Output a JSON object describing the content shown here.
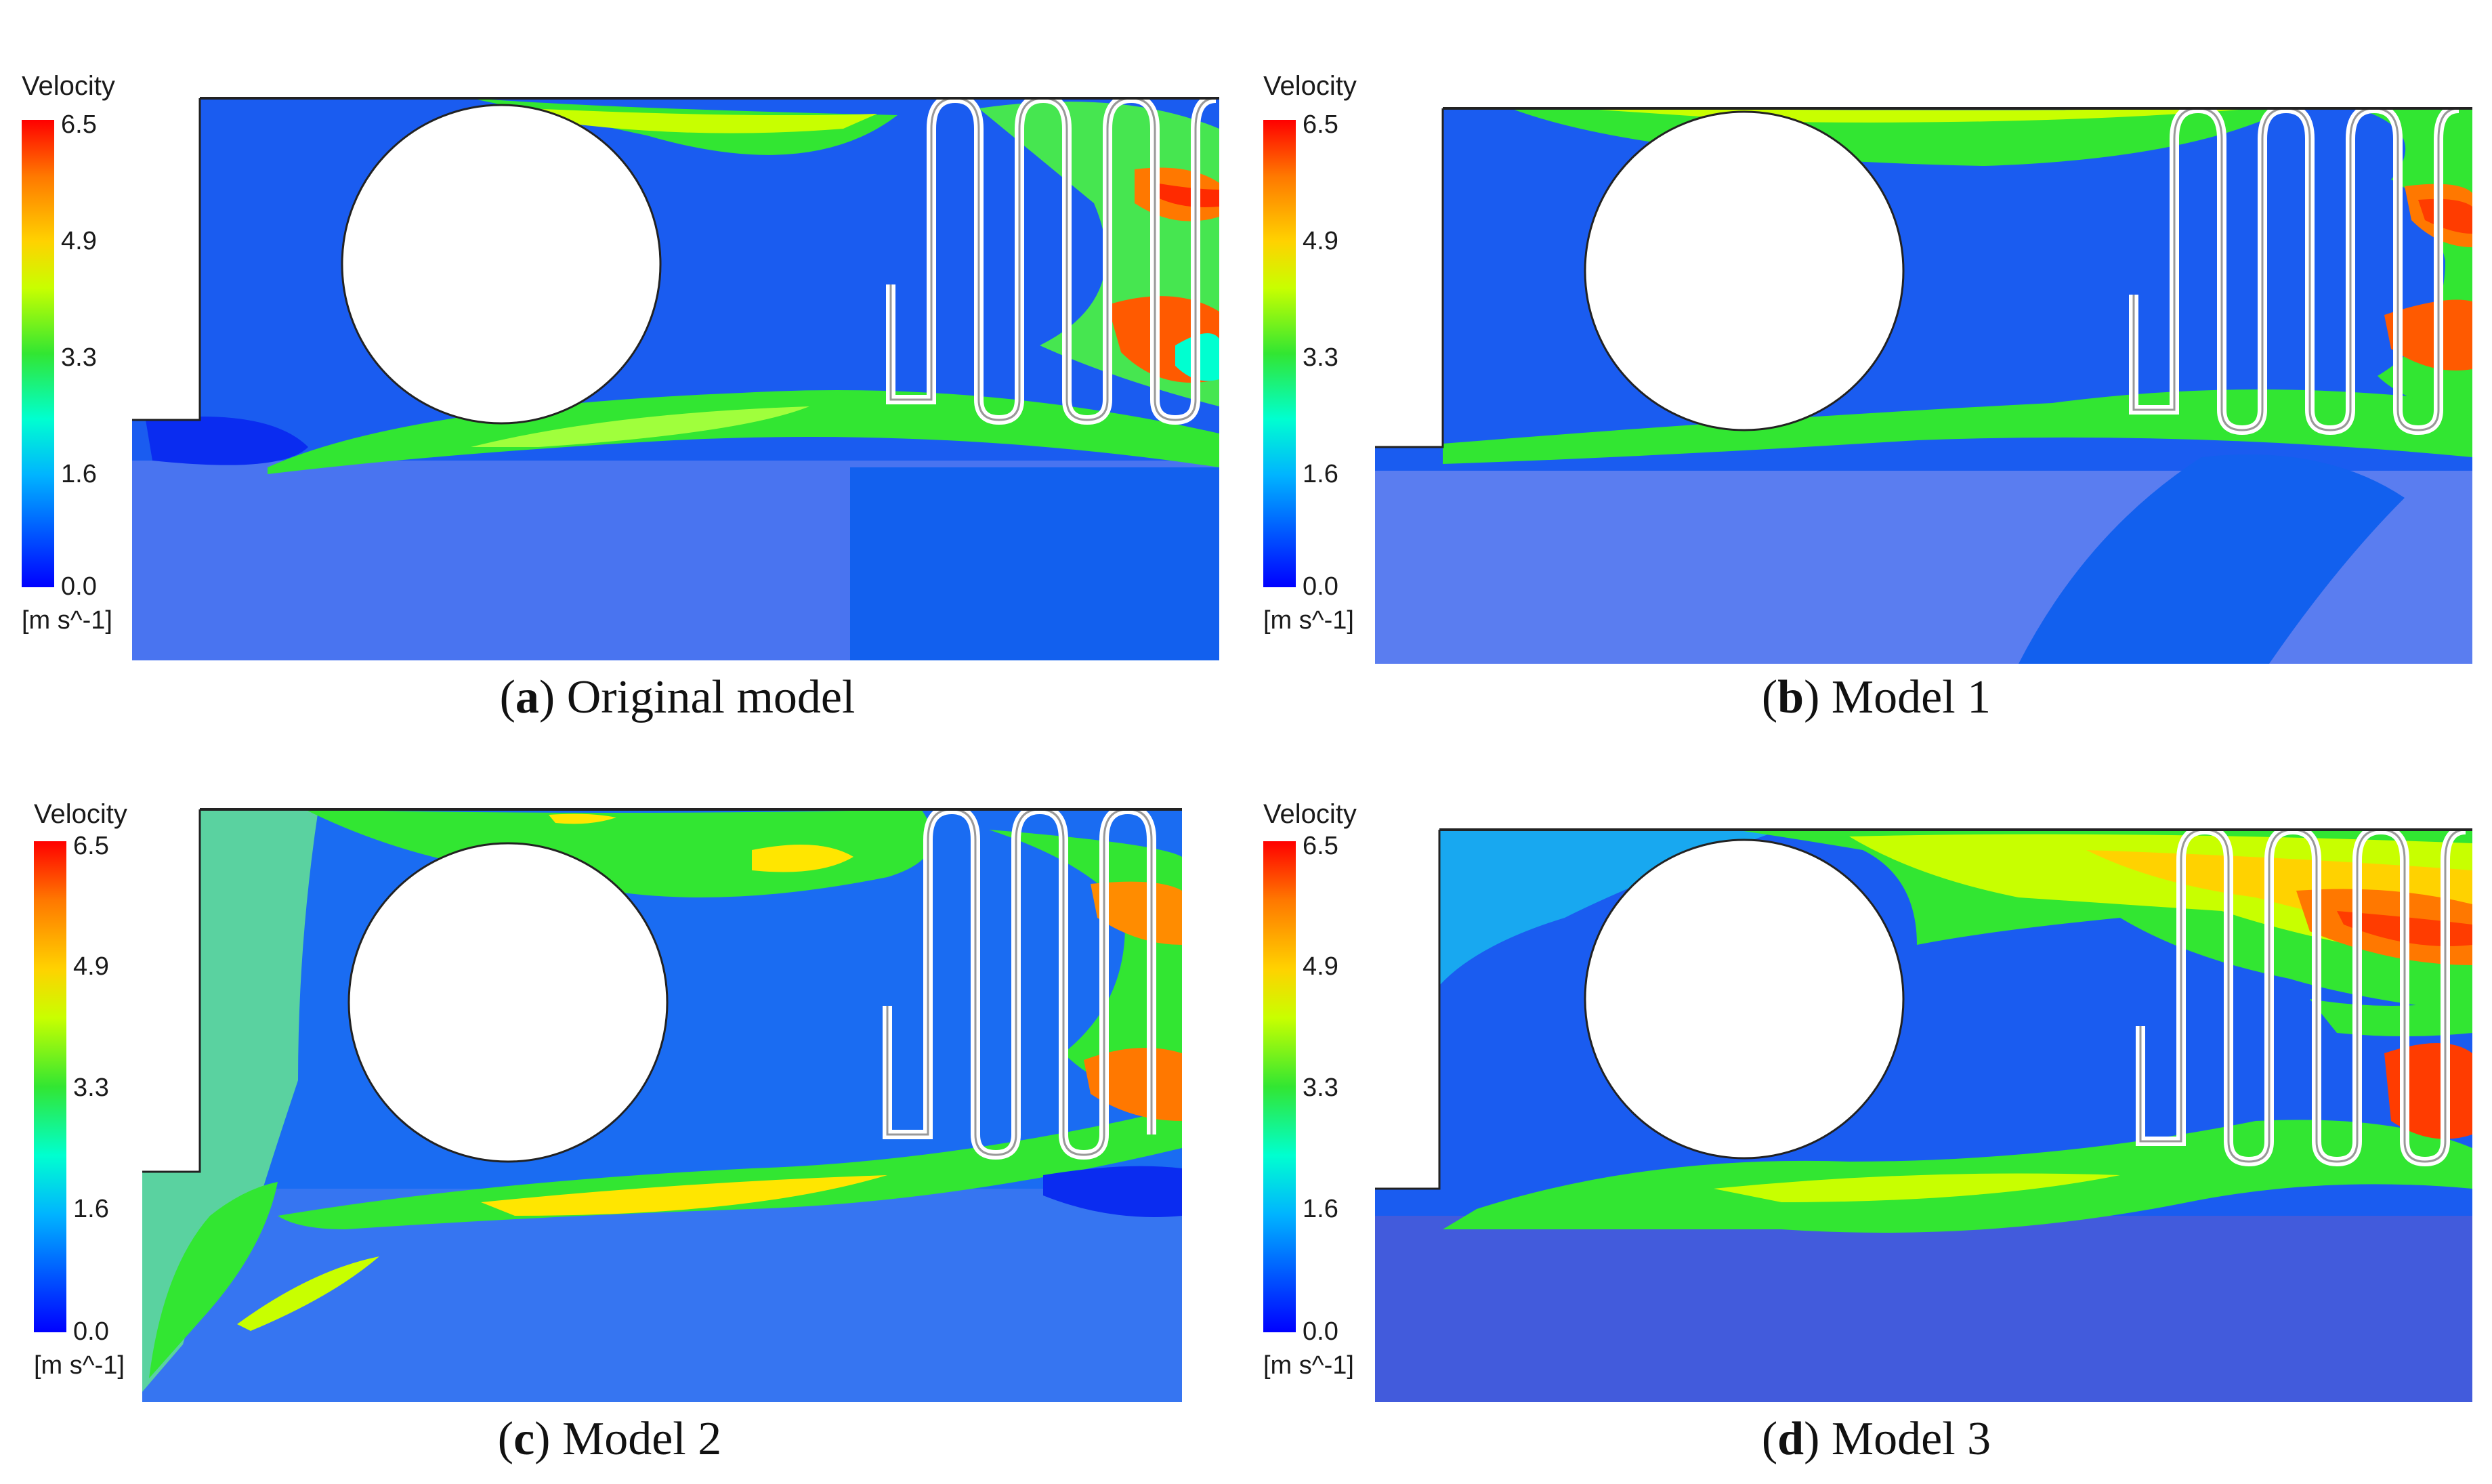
{
  "legend": {
    "title": "Velocity",
    "ticks": [
      "6.5",
      "4.9",
      "3.3",
      "1.6",
      "0.0"
    ],
    "unit": "[m s^-1]"
  },
  "panels": [
    {
      "letter": "a",
      "caption": "Original model"
    },
    {
      "letter": "b",
      "caption": "Model 1"
    },
    {
      "letter": "c",
      "caption": "Model 2"
    },
    {
      "letter": "d",
      "caption": "Model 3"
    }
  ],
  "colors": {
    "low": "#0000ff",
    "mid": "#32e632",
    "high": "#ff0000",
    "background_flow": "#1a5cf0"
  }
}
